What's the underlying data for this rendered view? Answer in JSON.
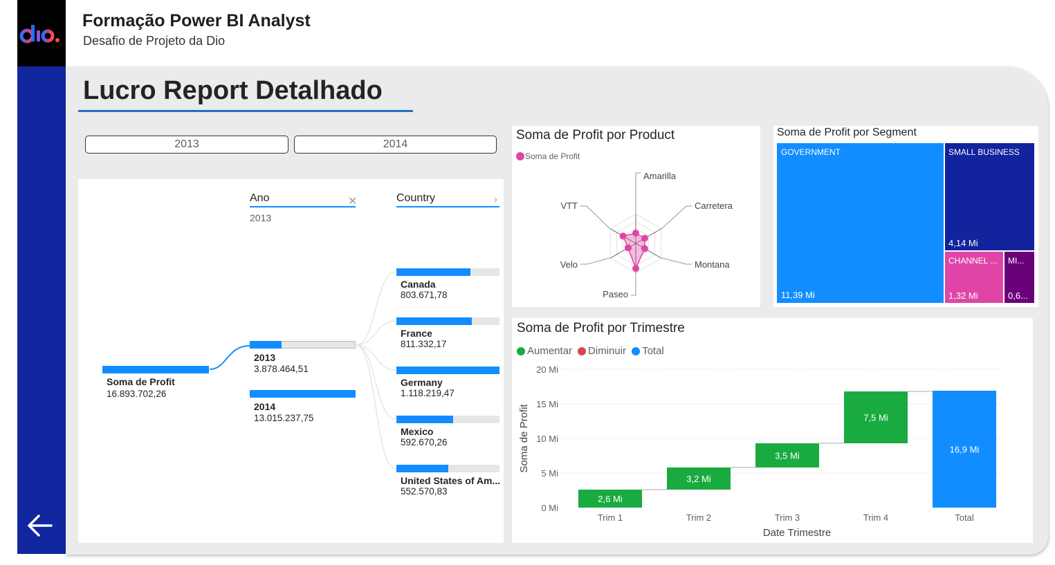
{
  "header": {
    "title": "Formação Power BI Analyst",
    "subtitle": "Desafio de Projeto da Dio",
    "logo_text": "dio."
  },
  "page_title": "Lucro Report Detalhado",
  "slicer": {
    "options": [
      "2013",
      "2014"
    ]
  },
  "decomposition_tree": {
    "root": {
      "label": "Soma de Profit",
      "value": "16.893.702,26"
    },
    "levels": [
      {
        "header": "Ano",
        "selected": "2013"
      },
      {
        "header": "Country",
        "selected": ""
      }
    ],
    "years": [
      {
        "label": "2013",
        "value": "3.878.464,51",
        "fill": 0.3
      },
      {
        "label": "2014",
        "value": "13.015.237,75",
        "fill": 1.0
      }
    ],
    "countries": [
      {
        "label": "Canada",
        "value": "803.671,78",
        "fill": 0.72
      },
      {
        "label": "France",
        "value": "811.332,17",
        "fill": 0.73
      },
      {
        "label": "Germany",
        "value": "1.118.219,47",
        "fill": 1.0
      },
      {
        "label": "Mexico",
        "value": "592.670,26",
        "fill": 0.55
      },
      {
        "label": "United States of Am...",
        "value": "552.570,83",
        "fill": 0.5
      }
    ]
  },
  "radar": {
    "title": "Soma de Profit por Product",
    "legend": "Soma de Profit",
    "axes": [
      "Amarilla",
      "Carretera",
      "Montana",
      "Paseo",
      "Velo",
      "VTT"
    ],
    "values": [
      0.35,
      0.35,
      0.35,
      0.85,
      0.3,
      0.5
    ],
    "color": "#e044a7"
  },
  "treemap": {
    "title": "Soma de Profit por Segment",
    "tiles": [
      {
        "label": "GOVERNMENT",
        "value": "11,39 Mi",
        "color": "#118dff"
      },
      {
        "label": "SMALL BUSINESS",
        "value": "4,14 Mi",
        "color": "#12239e"
      },
      {
        "label": "CHANNEL ...",
        "value": "1,32 Mi",
        "color": "#e044a7"
      },
      {
        "label": "MI...",
        "value": "0,6...",
        "color": "#6b007b"
      }
    ]
  },
  "chart_data": {
    "type": "bar",
    "subtype": "waterfall",
    "title": "Soma de Profit por Trimestre",
    "xlabel": "Date Trimestre",
    "ylabel": "Soma de Profit",
    "categories": [
      "Trim 1",
      "Trim 2",
      "Trim 3",
      "Trim 4",
      "Total"
    ],
    "values": [
      2.6,
      3.2,
      3.5,
      7.5,
      16.9
    ],
    "data_labels": [
      "2,6 Mi",
      "3,2 Mi",
      "3,5 Mi",
      "7,5 Mi",
      "16,9 Mi"
    ],
    "ylim": [
      0,
      20
    ],
    "yticks": [
      "0 Mi",
      "5 Mi",
      "10 Mi",
      "15 Mi",
      "20 Mi"
    ],
    "legend": [
      {
        "name": "Aumentar",
        "color": "#1aab40"
      },
      {
        "name": "Diminuir",
        "color": "#d64550"
      },
      {
        "name": "Total",
        "color": "#118dff"
      }
    ],
    "legend_position": "top-left",
    "grid": true
  }
}
